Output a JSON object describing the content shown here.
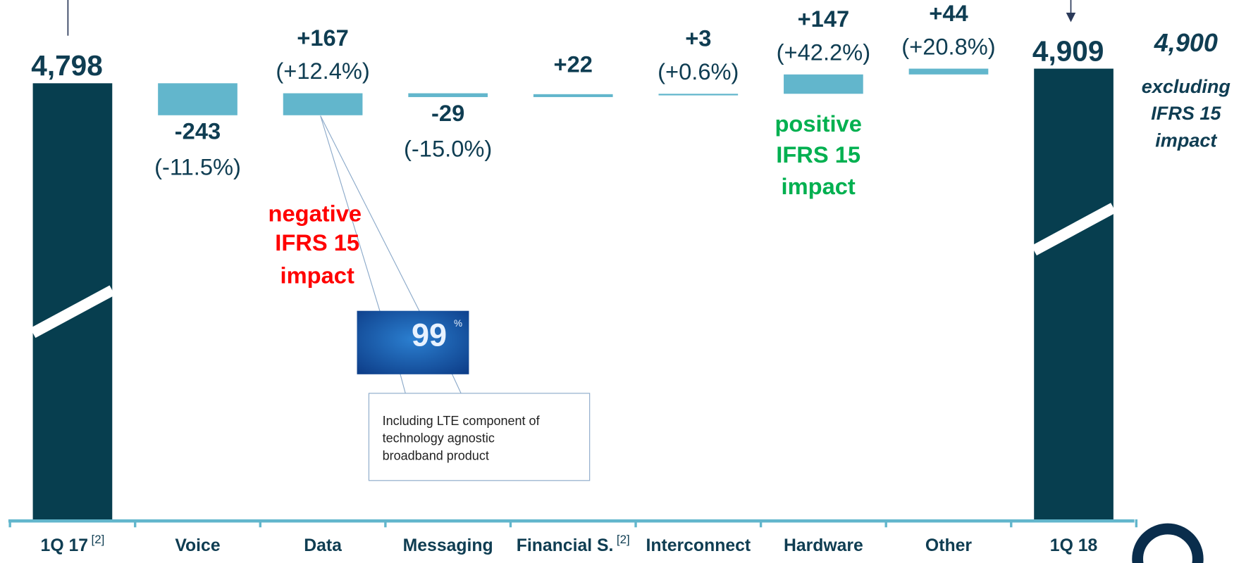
{
  "chart_data": {
    "type": "waterfall",
    "categories": [
      "1Q 17",
      "Voice",
      "Data",
      "Messaging",
      "Financial S.",
      "Interconnect",
      "Hardware",
      "Other",
      "1Q 18"
    ],
    "category_notes": [
      "[2]",
      null,
      null,
      null,
      "[2]",
      null,
      null,
      null,
      null
    ],
    "values": [
      4798,
      -243,
      167,
      -29,
      22,
      3,
      147,
      44,
      4909
    ],
    "value_labels": [
      "4,798",
      "-243",
      "+167",
      "-29",
      "+22",
      "+3",
      "+147",
      "+44",
      "4,909"
    ],
    "percent_labels": [
      null,
      "(-11.5%)",
      "(+12.4%)",
      "(-15.0%)",
      null,
      "(+0.6%)",
      "(+42.2%)",
      "(+20.8%)",
      null
    ],
    "totals": [
      true,
      false,
      false,
      false,
      false,
      false,
      false,
      false,
      true
    ],
    "total_color": "#073e4f",
    "delta_color": "#62b6cc",
    "annotations": {
      "negative_impact": [
        "negative",
        "IFRS 15",
        "impact"
      ],
      "positive_impact": [
        "positive",
        "IFRS 15",
        "impact"
      ],
      "adjusted_total": "4,900",
      "adjusted_note": [
        "excluding",
        "IFRS 15",
        "impact"
      ],
      "badge_number": "99",
      "badge_unit": "%",
      "callout": [
        "Including LTE component of",
        "technology agnostic",
        "broadband product"
      ]
    }
  }
}
